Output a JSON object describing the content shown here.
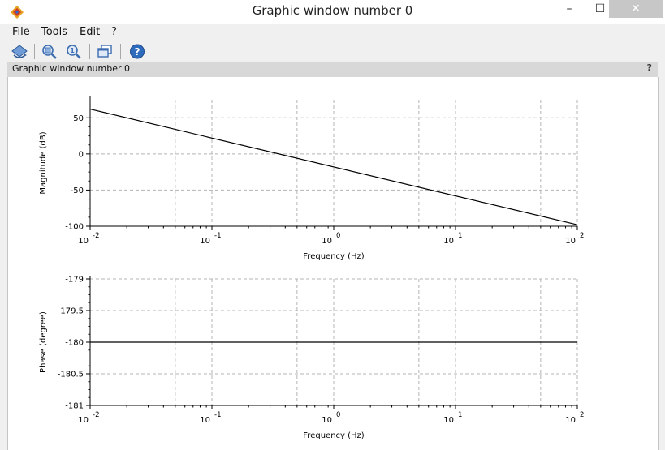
{
  "window": {
    "title": "Graphic window number 0",
    "min_label": "–",
    "max_label": "☐",
    "close_label": "✕"
  },
  "menu": {
    "items": [
      "File",
      "Tools",
      "Edit",
      "?"
    ]
  },
  "toolbar": {
    "icons": [
      "rotate-icon",
      "zoom-in-icon",
      "zoom-reset-icon",
      "new-window-icon",
      "help-icon"
    ]
  },
  "figure": {
    "title": "Graphic window number 0",
    "help": "?"
  },
  "colors": {
    "grid": "#b4b4b4",
    "line": "#000000",
    "axis": "#000000"
  },
  "chart_data": [
    {
      "type": "line",
      "xscale": "log",
      "xlim": [
        0.01,
        100
      ],
      "ylim": [
        -100,
        75
      ],
      "xlabel": "Frequency (Hz)",
      "ylabel": "Magnitude (dB)",
      "yticks": [
        50,
        0,
        -50,
        -100
      ],
      "ytick_labels": [
        "50",
        "0",
        "-50",
        "-100"
      ],
      "xticks": [
        0.01,
        0.1,
        1,
        10,
        100
      ],
      "xtick_base": "10",
      "xtick_exponents": [
        "-2",
        "-1",
        "0",
        "1",
        "2"
      ],
      "grid": true,
      "series": [
        {
          "x": [
            0.01,
            100
          ],
          "y": [
            62,
            -98
          ]
        }
      ]
    },
    {
      "type": "line",
      "xscale": "log",
      "xlim": [
        0.01,
        100
      ],
      "ylim": [
        -181,
        -179
      ],
      "xlabel": "Frequency (Hz)",
      "ylabel": "Phase (degree)",
      "yticks": [
        -179,
        -179.5,
        -180,
        -180.5,
        -181
      ],
      "ytick_labels": [
        "-179",
        "-179.5",
        "-180",
        "-180.5",
        "-181"
      ],
      "xticks": [
        0.01,
        0.1,
        1,
        10,
        100
      ],
      "xtick_base": "10",
      "xtick_exponents": [
        "-2",
        "-1",
        "0",
        "1",
        "2"
      ],
      "grid": true,
      "series": [
        {
          "x": [
            0.01,
            100
          ],
          "y": [
            -180,
            -180
          ]
        }
      ]
    }
  ]
}
